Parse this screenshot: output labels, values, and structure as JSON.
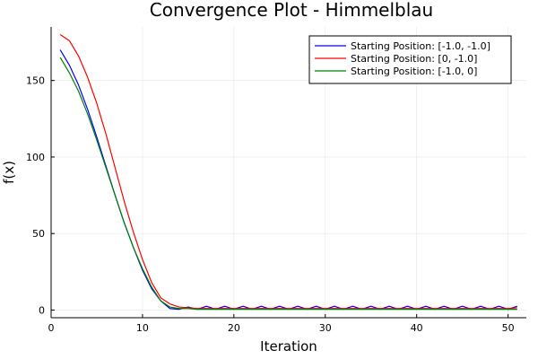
{
  "chart_data": {
    "type": "line",
    "title": "Convergence Plot - Himmelblau",
    "xlabel": "Iteration",
    "ylabel": "f(x)",
    "xlim": [
      0,
      52
    ],
    "ylim": [
      -5,
      185
    ],
    "xticks": [
      0,
      10,
      20,
      30,
      40,
      50
    ],
    "yticks": [
      0,
      50,
      100,
      150
    ],
    "grid": true,
    "legend_position": "top-right",
    "x": [
      1,
      2,
      3,
      4,
      5,
      6,
      7,
      8,
      9,
      10,
      11,
      12,
      13,
      14,
      15,
      16,
      17,
      18,
      19,
      20,
      21,
      22,
      23,
      24,
      25,
      26,
      27,
      28,
      29,
      30,
      31,
      32,
      33,
      34,
      35,
      36,
      37,
      38,
      39,
      40,
      41,
      42,
      43,
      44,
      45,
      46,
      47,
      48,
      49,
      50,
      51
    ],
    "series": [
      {
        "name": "Starting Position: [-1.0, -1.0]",
        "color": "#0000ff",
        "values": [
          170,
          160,
          147,
          131,
          113,
          94,
          75,
          57,
          41,
          26,
          14,
          6,
          1,
          0.5,
          2,
          0.5,
          2.5,
          0.5,
          2.5,
          0.5,
          2.5,
          0.5,
          2.5,
          0.5,
          2.5,
          0.5,
          2.5,
          0.5,
          2.5,
          0.5,
          2.5,
          0.5,
          2.5,
          0.5,
          2.5,
          0.5,
          2.5,
          0.5,
          2.5,
          0.5,
          2.5,
          0.5,
          2.5,
          0.5,
          2.5,
          0.5,
          2.5,
          0.5,
          2.5,
          0.5,
          2.5
        ]
      },
      {
        "name": "Starting Position: [0, -1.0]",
        "color": "#ff0000",
        "values": [
          180,
          176,
          166,
          152,
          135,
          115,
          93,
          71,
          51,
          33,
          18,
          8,
          4,
          2,
          1.5,
          1,
          1,
          1,
          1,
          1,
          1,
          1,
          1,
          1,
          1,
          1,
          1,
          1,
          1,
          1,
          1,
          1,
          1,
          1,
          1,
          1,
          1,
          1,
          1,
          1,
          1,
          1,
          1,
          1,
          1,
          1,
          1,
          1,
          1,
          1,
          1.5
        ]
      },
      {
        "name": "Starting Position: [-1.0, 0]",
        "color": "#008000",
        "values": [
          165,
          155,
          143,
          128,
          111,
          93,
          75,
          57,
          41,
          27,
          15,
          6,
          2,
          1,
          1,
          0.5,
          0.5,
          0.5,
          0.5,
          0.5,
          0.5,
          0.5,
          0.5,
          0.5,
          0.5,
          0.5,
          0.5,
          0.5,
          0.5,
          0.5,
          0.5,
          0.5,
          0.5,
          0.5,
          0.5,
          0.5,
          0.5,
          0.5,
          0.5,
          0.5,
          0.5,
          0.5,
          0.5,
          0.5,
          0.5,
          0.5,
          0.5,
          0.5,
          0.5,
          0.5,
          0.5
        ]
      }
    ]
  }
}
